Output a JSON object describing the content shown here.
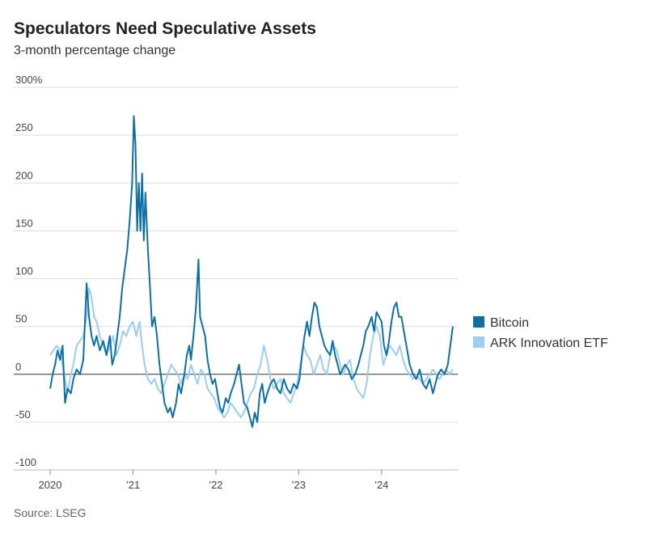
{
  "chart_data": {
    "type": "line",
    "title": "Speculators Need Speculative Assets",
    "subtitle": "3-month percentage change",
    "source": "Source: LSEG",
    "xlim": [
      2020,
      2024.92
    ],
    "xticks": [
      2020,
      {
        "value": 2021,
        "label": "’21"
      },
      {
        "value": 2022,
        "label": "’22"
      },
      {
        "value": 2023,
        "label": "’23"
      },
      {
        "value": 2024,
        "label": "’24"
      }
    ],
    "ylim": [
      -100,
      300
    ],
    "yticks": [
      -100,
      -50,
      0,
      50,
      100,
      150,
      200,
      250,
      {
        "value": 300,
        "label": "300%"
      }
    ],
    "grid": true,
    "legend": "right",
    "series": [
      {
        "name": "Bitcoin",
        "color": "#0f6fa3",
        "x": [
          2020.0,
          2020.03,
          2020.06,
          2020.09,
          2020.12,
          2020.15,
          2020.18,
          2020.21,
          2020.25,
          2020.28,
          2020.32,
          2020.36,
          2020.4,
          2020.44,
          2020.47,
          2020.5,
          2020.53,
          2020.56,
          2020.6,
          2020.64,
          2020.68,
          2020.72,
          2020.75,
          2020.78,
          2020.81,
          2020.84,
          2020.87,
          2020.9,
          2020.93,
          2020.96,
          2020.99,
          2021.01,
          2021.03,
          2021.05,
          2021.07,
          2021.09,
          2021.11,
          2021.13,
          2021.15,
          2021.18,
          2021.2,
          2021.23,
          2021.26,
          2021.29,
          2021.32,
          2021.35,
          2021.38,
          2021.42,
          2021.45,
          2021.48,
          2021.52,
          2021.55,
          2021.58,
          2021.62,
          2021.65,
          2021.68,
          2021.7,
          2021.73,
          2021.76,
          2021.79,
          2021.81,
          2021.84,
          2021.87,
          2021.9,
          2021.93,
          2021.96,
          2021.99,
          2022.02,
          2022.05,
          2022.08,
          2022.12,
          2022.15,
          2022.18,
          2022.22,
          2022.25,
          2022.28,
          2022.31,
          2022.34,
          2022.38,
          2022.41,
          2022.44,
          2022.47,
          2022.5,
          2022.53,
          2022.56,
          2022.59,
          2022.62,
          2022.66,
          2022.7,
          2022.74,
          2022.78,
          2022.82,
          2022.86,
          2022.9,
          2022.94,
          2022.98,
          2023.01,
          2023.04,
          2023.07,
          2023.1,
          2023.13,
          2023.16,
          2023.19,
          2023.22,
          2023.25,
          2023.28,
          2023.31,
          2023.34,
          2023.38,
          2023.41,
          2023.44,
          2023.47,
          2023.5,
          2023.53,
          2023.56,
          2023.6,
          2023.64,
          2023.68,
          2023.72,
          2023.75,
          2023.78,
          2023.81,
          2023.84,
          2023.88,
          2023.91,
          2023.94,
          2023.97,
          2024.0,
          2024.03,
          2024.06,
          2024.09,
          2024.12,
          2024.15,
          2024.18,
          2024.21,
          2024.24,
          2024.27,
          2024.3,
          2024.34,
          2024.38,
          2024.42,
          2024.46,
          2024.5,
          2024.54,
          2024.58,
          2024.62,
          2024.65,
          2024.68,
          2024.72,
          2024.76,
          2024.8,
          2024.83,
          2024.86
        ],
        "values": [
          -15,
          0,
          10,
          25,
          15,
          30,
          -30,
          -15,
          -20,
          -5,
          5,
          0,
          15,
          95,
          60,
          40,
          30,
          40,
          25,
          35,
          20,
          40,
          10,
          20,
          40,
          60,
          90,
          110,
          130,
          160,
          200,
          270,
          240,
          150,
          200,
          150,
          210,
          140,
          190,
          130,
          100,
          50,
          60,
          40,
          10,
          -10,
          -30,
          -40,
          -35,
          -45,
          -30,
          -10,
          -20,
          0,
          20,
          30,
          15,
          40,
          70,
          120,
          60,
          50,
          40,
          15,
          0,
          -10,
          -5,
          -20,
          -35,
          -40,
          -25,
          -30,
          -20,
          -10,
          0,
          10,
          -10,
          -30,
          -35,
          -45,
          -55,
          -40,
          -50,
          -20,
          -10,
          -30,
          -20,
          -10,
          -5,
          -15,
          -20,
          -5,
          -15,
          -20,
          -10,
          -15,
          -5,
          20,
          40,
          55,
          40,
          60,
          75,
          70,
          50,
          40,
          30,
          25,
          20,
          35,
          20,
          10,
          0,
          5,
          10,
          5,
          -5,
          0,
          10,
          20,
          30,
          45,
          50,
          60,
          45,
          65,
          60,
          55,
          30,
          20,
          35,
          55,
          70,
          75,
          60,
          60,
          45,
          30,
          10,
          0,
          -5,
          5,
          -10,
          -15,
          -5,
          -20,
          -10,
          0,
          5,
          0,
          10,
          30,
          50
        ]
      },
      {
        "name": "ARK Innovation ETF",
        "color": "#9dcdef",
        "x": [
          2020.0,
          2020.04,
          2020.08,
          2020.12,
          2020.15,
          2020.18,
          2020.21,
          2020.25,
          2020.28,
          2020.32,
          2020.36,
          2020.4,
          2020.44,
          2020.47,
          2020.5,
          2020.53,
          2020.56,
          2020.6,
          2020.64,
          2020.68,
          2020.72,
          2020.76,
          2020.8,
          2020.84,
          2020.88,
          2020.92,
          2020.96,
          2021.0,
          2021.04,
          2021.08,
          2021.11,
          2021.14,
          2021.18,
          2021.22,
          2021.26,
          2021.3,
          2021.34,
          2021.38,
          2021.42,
          2021.46,
          2021.5,
          2021.54,
          2021.58,
          2021.62,
          2021.66,
          2021.7,
          2021.74,
          2021.78,
          2021.82,
          2021.86,
          2021.9,
          2021.94,
          2021.98,
          2022.02,
          2022.06,
          2022.1,
          2022.14,
          2022.18,
          2022.22,
          2022.26,
          2022.3,
          2022.34,
          2022.38,
          2022.42,
          2022.46,
          2022.5,
          2022.54,
          2022.58,
          2022.62,
          2022.66,
          2022.7,
          2022.74,
          2022.78,
          2022.82,
          2022.86,
          2022.9,
          2022.94,
          2022.98,
          2023.02,
          2023.06,
          2023.1,
          2023.14,
          2023.18,
          2023.22,
          2023.26,
          2023.3,
          2023.34,
          2023.38,
          2023.42,
          2023.46,
          2023.5,
          2023.54,
          2023.58,
          2023.62,
          2023.66,
          2023.7,
          2023.74,
          2023.78,
          2023.82,
          2023.86,
          2023.9,
          2023.94,
          2023.98,
          2024.02,
          2024.06,
          2024.1,
          2024.14,
          2024.18,
          2024.22,
          2024.26,
          2024.3,
          2024.34,
          2024.38,
          2024.42,
          2024.46,
          2024.5,
          2024.54,
          2024.58,
          2024.62,
          2024.66,
          2024.7,
          2024.74,
          2024.78,
          2024.82,
          2024.86
        ],
        "values": [
          20,
          25,
          30,
          25,
          10,
          -5,
          -20,
          0,
          10,
          30,
          35,
          40,
          60,
          90,
          80,
          60,
          55,
          40,
          30,
          20,
          30,
          40,
          20,
          30,
          45,
          40,
          50,
          55,
          40,
          55,
          30,
          10,
          -5,
          -10,
          -5,
          -15,
          -20,
          -10,
          0,
          10,
          5,
          0,
          -10,
          0,
          -5,
          10,
          0,
          -10,
          5,
          0,
          -15,
          -20,
          -25,
          -35,
          -40,
          -45,
          -40,
          -30,
          -35,
          -40,
          -45,
          -40,
          -30,
          -20,
          -15,
          0,
          10,
          30,
          15,
          -5,
          -15,
          -10,
          -5,
          -20,
          -25,
          -30,
          -20,
          -10,
          10,
          30,
          20,
          15,
          0,
          10,
          20,
          5,
          0,
          20,
          30,
          25,
          10,
          0,
          10,
          15,
          -5,
          -15,
          -20,
          -25,
          -10,
          20,
          40,
          50,
          40,
          10,
          20,
          30,
          25,
          20,
          30,
          15,
          5,
          0,
          -5,
          0,
          -5,
          -10,
          -5,
          0,
          5,
          0,
          -5,
          0,
          5,
          0,
          5
        ]
      }
    ]
  }
}
